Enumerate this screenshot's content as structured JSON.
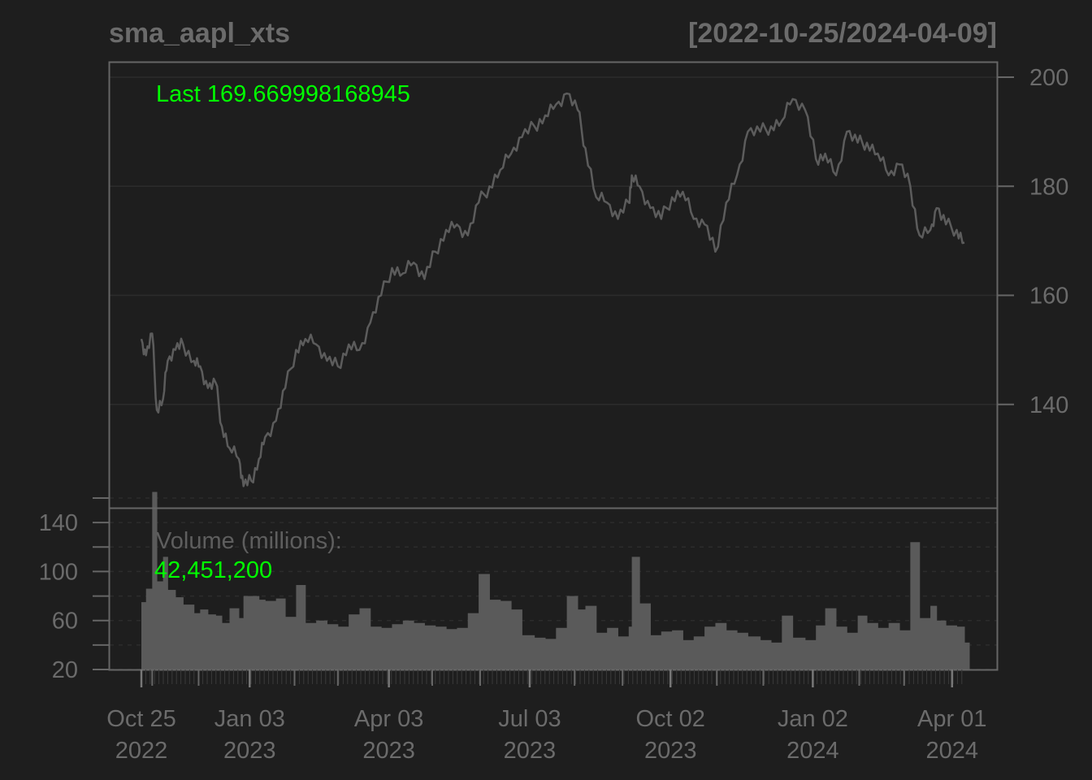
{
  "header": {
    "symbol": "sma_aapl_xts",
    "date_range": "[2022-10-25/2024-04-09]"
  },
  "colors": {
    "background": "#1e1e1e",
    "frame": "#666666",
    "grid": "#2c2c2c",
    "series": "#5c5c5c",
    "volume_bar": "#5a5a5a",
    "highlight": "#00ff00",
    "text": "#6b6b6b"
  },
  "price_panel": {
    "last_label": "Last 169.669998168945"
  },
  "volume_panel": {
    "title": "Volume (millions):",
    "last_value": "42,451,200"
  },
  "chart_data": [
    {
      "type": "line",
      "title": "sma_aapl_xts",
      "subtitle": "[2022-10-25/2024-04-09]",
      "ylim": [
        120,
        200
      ],
      "y_ticks": [
        140,
        160,
        180,
        200
      ],
      "grid": true,
      "x_tick_labels": [
        {
          "top": "Oct 25",
          "bottom": "2022",
          "date": "2022-10-25"
        },
        {
          "top": "Jan 03",
          "bottom": "2023",
          "date": "2023-01-03"
        },
        {
          "top": "Apr 03",
          "bottom": "2023",
          "date": "2023-04-03"
        },
        {
          "top": "Jul 03",
          "bottom": "2023",
          "date": "2023-07-03"
        },
        {
          "top": "Oct 02",
          "bottom": "2023",
          "date": "2023-10-02"
        },
        {
          "top": "Jan 02",
          "bottom": "2024",
          "date": "2024-01-02"
        },
        {
          "top": "Apr 01",
          "bottom": "2024",
          "date": "2024-04-01"
        }
      ],
      "series": [
        {
          "x": [
            "2022-10-25",
            "2022-10-28",
            "2022-11-01",
            "2022-11-04",
            "2022-11-08",
            "2022-11-11",
            "2022-11-16",
            "2022-11-21",
            "2022-11-28",
            "2022-12-02",
            "2022-12-07",
            "2022-12-12",
            "2022-12-16",
            "2022-12-21",
            "2022-12-27",
            "2022-12-30",
            "2023-01-04",
            "2023-01-09",
            "2023-01-13",
            "2023-01-20",
            "2023-01-26",
            "2023-02-02",
            "2023-02-08",
            "2023-02-15",
            "2023-02-22",
            "2023-03-01",
            "2023-03-08",
            "2023-03-15",
            "2023-03-22",
            "2023-03-29",
            "2023-04-05",
            "2023-04-12",
            "2023-04-19",
            "2023-04-26",
            "2023-05-03",
            "2023-05-10",
            "2023-05-17",
            "2023-05-24",
            "2023-05-31",
            "2023-06-07",
            "2023-06-14",
            "2023-06-21",
            "2023-06-28",
            "2023-07-06",
            "2023-07-13",
            "2023-07-20",
            "2023-07-27",
            "2023-08-03",
            "2023-08-08",
            "2023-08-15",
            "2023-08-22",
            "2023-08-29",
            "2023-09-05",
            "2023-09-07",
            "2023-09-12",
            "2023-09-19",
            "2023-09-26",
            "2023-10-03",
            "2023-10-10",
            "2023-10-17",
            "2023-10-24",
            "2023-10-31",
            "2023-11-07",
            "2023-11-14",
            "2023-11-21",
            "2023-11-29",
            "2023-12-06",
            "2023-12-13",
            "2023-12-20",
            "2023-12-28",
            "2024-01-04",
            "2024-01-10",
            "2024-01-17",
            "2024-01-24",
            "2024-01-31",
            "2024-02-06",
            "2024-02-13",
            "2024-02-20",
            "2024-02-27",
            "2024-03-05",
            "2024-03-11",
            "2024-03-18",
            "2024-03-22",
            "2024-03-28",
            "2024-04-04",
            "2024-04-09"
          ],
          "values": [
            152,
            149,
            153,
            139,
            141,
            148,
            150,
            151,
            148,
            147,
            143,
            144,
            136,
            132,
            130,
            125,
            126,
            130,
            134,
            137,
            143,
            150,
            152,
            151,
            148,
            147,
            151,
            150,
            155,
            160,
            165,
            164,
            166,
            163,
            168,
            172,
            173,
            171,
            177,
            180,
            183,
            186,
            189,
            191,
            193,
            195,
            197,
            194,
            187,
            178,
            177,
            174,
            177,
            182,
            180,
            176,
            174,
            178,
            179,
            174,
            173,
            168,
            177,
            182,
            190,
            190,
            191,
            192,
            196,
            194,
            185,
            186,
            182,
            190,
            188,
            188,
            186,
            182,
            184,
            180,
            171,
            172,
            176,
            173,
            172,
            169.67
          ]
        }
      ]
    },
    {
      "type": "bar",
      "title": "Volume (millions):",
      "ylim": [
        20,
        160
      ],
      "y_ticks": [
        20,
        60,
        100,
        140
      ],
      "grid": true,
      "x": [
        "2022-10-25",
        "2022-10-28",
        "2022-11-01",
        "2022-11-04",
        "2022-11-08",
        "2022-11-11",
        "2022-11-16",
        "2022-11-21",
        "2022-11-28",
        "2022-12-02",
        "2022-12-07",
        "2022-12-12",
        "2022-12-16",
        "2022-12-21",
        "2022-12-27",
        "2022-12-30",
        "2023-01-04",
        "2023-01-09",
        "2023-01-13",
        "2023-01-20",
        "2023-01-26",
        "2023-02-02",
        "2023-02-08",
        "2023-02-15",
        "2023-02-22",
        "2023-03-01",
        "2023-03-08",
        "2023-03-15",
        "2023-03-22",
        "2023-03-29",
        "2023-04-05",
        "2023-04-12",
        "2023-04-19",
        "2023-04-26",
        "2023-05-03",
        "2023-05-10",
        "2023-05-17",
        "2023-05-24",
        "2023-05-31",
        "2023-06-07",
        "2023-06-14",
        "2023-06-21",
        "2023-06-28",
        "2023-07-06",
        "2023-07-13",
        "2023-07-20",
        "2023-07-27",
        "2023-08-03",
        "2023-08-08",
        "2023-08-15",
        "2023-08-22",
        "2023-08-29",
        "2023-09-05",
        "2023-09-07",
        "2023-09-12",
        "2023-09-19",
        "2023-09-26",
        "2023-10-03",
        "2023-10-10",
        "2023-10-17",
        "2023-10-24",
        "2023-10-31",
        "2023-11-07",
        "2023-11-14",
        "2023-11-21",
        "2023-11-29",
        "2023-12-06",
        "2023-12-13",
        "2023-12-20",
        "2023-12-28",
        "2024-01-04",
        "2024-01-10",
        "2024-01-17",
        "2024-01-24",
        "2024-01-31",
        "2024-02-06",
        "2024-02-13",
        "2024-02-20",
        "2024-02-27",
        "2024-03-05",
        "2024-03-11",
        "2024-03-18",
        "2024-03-22",
        "2024-03-28",
        "2024-04-04",
        "2024-04-09"
      ],
      "values": [
        75,
        86,
        165,
        92,
        112,
        85,
        79,
        73,
        66,
        69,
        65,
        64,
        58,
        70,
        62,
        80,
        80,
        77,
        76,
        78,
        63,
        89,
        58,
        60,
        57,
        55,
        65,
        70,
        55,
        54,
        57,
        60,
        58,
        56,
        55,
        53,
        54,
        66,
        98,
        77,
        76,
        69,
        48,
        46,
        45,
        54,
        80,
        69,
        72,
        50,
        54,
        47,
        55,
        112,
        74,
        48,
        51,
        52,
        44,
        47,
        55,
        58,
        52,
        50,
        47,
        44,
        42,
        64,
        46,
        44,
        56,
        70,
        55,
        50,
        64,
        58,
        54,
        58,
        52,
        124,
        62,
        72,
        60,
        56,
        55,
        42
      ]
    }
  ]
}
